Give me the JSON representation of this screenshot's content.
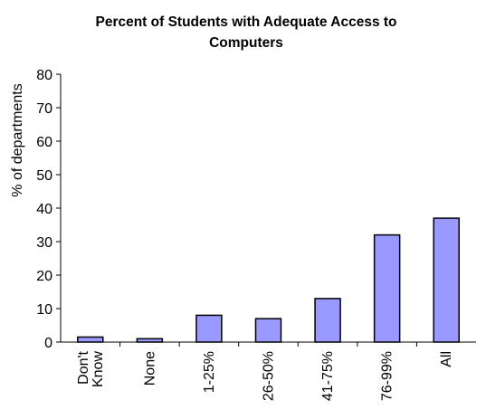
{
  "chart_data": {
    "type": "bar",
    "title": "Percent of Students with Adequate Access to Computers",
    "title_lines": [
      "Percent of Students with Adequate Access to",
      "Computers"
    ],
    "xlabel": "",
    "ylabel": "% of departments",
    "categories": [
      "Don't Know",
      "None",
      "1-25%",
      "26-50%",
      "41-75%",
      "76-99%",
      "All"
    ],
    "category_lines": [
      [
        "Don't",
        "Know"
      ],
      [
        "None"
      ],
      [
        "1-25%"
      ],
      [
        "26-50%"
      ],
      [
        "41-75%"
      ],
      [
        "76-99%"
      ],
      [
        "All"
      ]
    ],
    "values": [
      1.5,
      1,
      8,
      7,
      13,
      32,
      37
    ],
    "ylim": [
      0,
      80
    ],
    "yticks": [
      0,
      10,
      20,
      30,
      40,
      50,
      60,
      70,
      80
    ],
    "grid": false,
    "legend": "none",
    "bar_color": "#9999ff",
    "bar_stroke": "#000000"
  }
}
